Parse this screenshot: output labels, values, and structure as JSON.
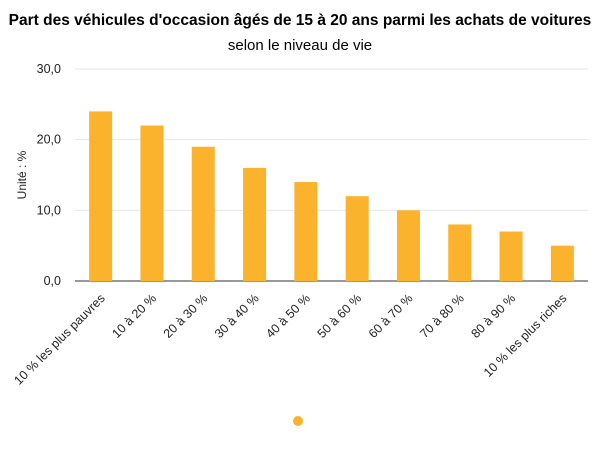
{
  "chart_data": {
    "type": "bar",
    "title": "Part des véhicules d'occasion âgés de 15 à 20 ans parmi les achats de voitures",
    "subtitle": "selon le niveau de vie",
    "ylabel": "Unité : %",
    "xlabel": "",
    "categories": [
      "10 % les plus pauvres",
      "10 à 20 %",
      "20 à 30 %",
      "30 à 40 %",
      "40 à 50 %",
      "50 à 60 %",
      "60 à 70 %",
      "70 à 80 %",
      "80 à 90 %",
      "10 % les plus riches"
    ],
    "values": [
      24,
      22,
      19,
      16,
      14,
      12,
      10,
      8,
      7,
      5
    ],
    "ylim": [
      0,
      30
    ],
    "yticks": [
      "0,0",
      "10,0",
      "20,0",
      "30,0"
    ],
    "ytick_values": [
      0,
      10,
      20,
      30
    ],
    "grid": true,
    "legend": "bottom",
    "color": "#FBB22C",
    "grid_color": "#E6E6E6"
  }
}
